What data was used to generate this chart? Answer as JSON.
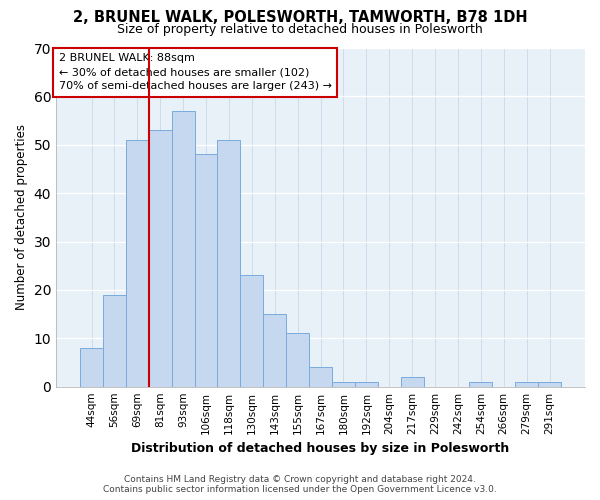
{
  "title1": "2, BRUNEL WALK, POLESWORTH, TAMWORTH, B78 1DH",
  "title2": "Size of property relative to detached houses in Polesworth",
  "xlabel": "Distribution of detached houses by size in Polesworth",
  "ylabel": "Number of detached properties",
  "categories": [
    "44sqm",
    "56sqm",
    "69sqm",
    "81sqm",
    "93sqm",
    "106sqm",
    "118sqm",
    "130sqm",
    "143sqm",
    "155sqm",
    "167sqm",
    "180sqm",
    "192sqm",
    "204sqm",
    "217sqm",
    "229sqm",
    "242sqm",
    "254sqm",
    "266sqm",
    "279sqm",
    "291sqm"
  ],
  "values": [
    8,
    19,
    51,
    53,
    57,
    48,
    51,
    23,
    15,
    11,
    4,
    1,
    1,
    0,
    2,
    0,
    0,
    1,
    0,
    1,
    1
  ],
  "bar_color": "#c5d8f0",
  "bar_edge_color": "#7aaadd",
  "vline_color": "#cc0000",
  "vline_position": 2.5,
  "annotation_text": "2 BRUNEL WALK: 88sqm\n← 30% of detached houses are smaller (102)\n70% of semi-detached houses are larger (243) →",
  "ylim": [
    0,
    70
  ],
  "yticks": [
    0,
    10,
    20,
    30,
    40,
    50,
    60,
    70
  ],
  "footer_line1": "Contains HM Land Registry data © Crown copyright and database right 2024.",
  "footer_line2": "Contains public sector information licensed under the Open Government Licence v3.0.",
  "fig_bg": "#ffffff",
  "plot_bg": "#e8f0f8"
}
